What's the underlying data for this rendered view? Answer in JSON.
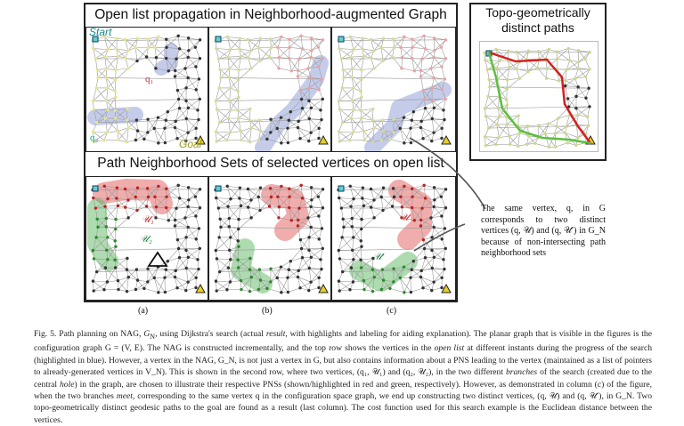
{
  "figure": {
    "row1_title": "Open list propagation in Neighborhood-augmented Graph",
    "row2_title": "Path Neighborhood Sets of selected vertices on open list",
    "right_title": "Topo-geometrically distinct paths",
    "labels": {
      "start": "Start",
      "goal": "Goal",
      "q1": "q₁",
      "q2": "q₂",
      "u1": "𝒰₁",
      "u2": "𝒰₂",
      "u": "𝒰",
      "u_prime": "𝒰′"
    },
    "columns": [
      "(a)",
      "(b)",
      "(c)"
    ],
    "note": "The same vertex, q, in G corresponds to two distinct vertices (q, 𝒰) and (q, 𝒰′) in G_N because of non-intersecting path neighborhood sets",
    "colors": {
      "open_list": "#7f8fd0",
      "pns_red": "#e04848",
      "pns_green": "#4caf50",
      "visited_yellow": "#e8e58c",
      "visited_pink": "#f0a0a0",
      "path_red": "#d42020",
      "path_green": "#5cbf3c"
    }
  },
  "caption": [
    "Fig. 5.    Path planning on NAG, ",
    "G",
    "N",
    ", using Dijkstra's search (actual ",
    "result",
    ", with highlights and labeling for aiding explanation). The planar graph that is visible in the figures is the configuration graph G = (V, E). The NAG is constructed incrementally, and the top row shows the vertices in the ",
    "open list",
    " at different instants during the progress of the search (highlighted in blue). However, a vertex in the NAG, G_N, is not just a vertex in G, but also contains information about a PNS leading to the vertex (maintained as a list of pointers to already-generated vertices in V_N). This is shown in the second row, where two vertices, (q₁, 𝒰₁) and (q₂, 𝒰₂), in the two different ",
    "branches",
    " of the search (created due to the central ",
    "hole",
    ") in the graph, are chosen to illustrate their respective PNSs (shown/highlighted in red and green, respectively). However, as demonstrated in column (c) of the figure, when the two branches ",
    "meet",
    ", corresponding to the same vertex q in the configuration space graph, we end up constructing two distinct vertices, (q, 𝒰) and (q, 𝒰′), in G_N. Two topo-geometrically distinct geodesic paths to the goal are found as a result (last column). The cost function used for this search example is the Euclidean distance between the vertices."
  ]
}
